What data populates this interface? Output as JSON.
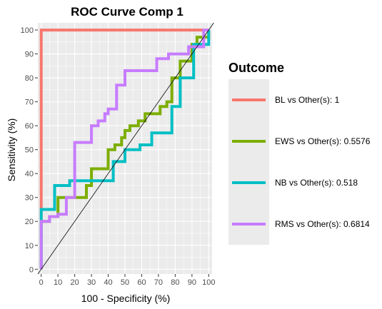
{
  "chart_data": {
    "type": "line",
    "title": "ROC Curve Comp 1",
    "xlabel": "100 - Specificity (%)",
    "ylabel": "Sensitivity (%)",
    "xlim": [
      -2,
      102
    ],
    "ylim": [
      -2,
      103
    ],
    "xticks": [
      "0",
      "10",
      "20",
      "30",
      "40",
      "50",
      "60",
      "70",
      "80",
      "90",
      "100"
    ],
    "yticks": [
      "0",
      "10",
      "20",
      "30",
      "40",
      "50",
      "60",
      "70",
      "80",
      "90",
      "100"
    ],
    "grid": true,
    "diagonal_reference": true,
    "legend": {
      "title": "Outcome",
      "position": "right"
    },
    "series": [
      {
        "name": "BL vs Other(s): 1",
        "color": "#F8766D",
        "points": [
          [
            0,
            0
          ],
          [
            0,
            100
          ],
          [
            100,
            100
          ]
        ]
      },
      {
        "name": "EWS vs Other(s): 0.5576",
        "color": "#7CAE00",
        "points": [
          [
            0,
            0
          ],
          [
            0,
            20
          ],
          [
            5,
            20
          ],
          [
            5,
            22
          ],
          [
            10,
            22
          ],
          [
            10,
            30
          ],
          [
            27,
            30
          ],
          [
            27,
            35
          ],
          [
            30,
            35
          ],
          [
            30,
            42
          ],
          [
            40,
            42
          ],
          [
            40,
            50
          ],
          [
            44,
            50
          ],
          [
            44,
            52
          ],
          [
            48,
            52
          ],
          [
            48,
            55
          ],
          [
            50,
            55
          ],
          [
            50,
            58
          ],
          [
            53,
            58
          ],
          [
            53,
            60
          ],
          [
            58,
            60
          ],
          [
            58,
            62
          ],
          [
            62,
            62
          ],
          [
            62,
            65
          ],
          [
            71,
            65
          ],
          [
            71,
            68
          ],
          [
            75,
            68
          ],
          [
            75,
            70
          ],
          [
            78,
            70
          ],
          [
            78,
            80
          ],
          [
            83,
            80
          ],
          [
            83,
            87
          ],
          [
            90,
            87
          ],
          [
            90,
            94
          ],
          [
            93,
            94
          ],
          [
            93,
            97
          ],
          [
            100,
            97
          ],
          [
            100,
            100
          ]
        ]
      },
      {
        "name": "NB vs Other(s): 0.518",
        "color": "#00BFC4",
        "points": [
          [
            0,
            0
          ],
          [
            0,
            25
          ],
          [
            8,
            25
          ],
          [
            8,
            35
          ],
          [
            17,
            35
          ],
          [
            17,
            37
          ],
          [
            43,
            37
          ],
          [
            43,
            45
          ],
          [
            50,
            45
          ],
          [
            50,
            50
          ],
          [
            59,
            50
          ],
          [
            59,
            52
          ],
          [
            66,
            52
          ],
          [
            66,
            57
          ],
          [
            78,
            57
          ],
          [
            78,
            68
          ],
          [
            83,
            68
          ],
          [
            83,
            80
          ],
          [
            91,
            80
          ],
          [
            91,
            94
          ],
          [
            100,
            94
          ],
          [
            100,
            100
          ]
        ]
      },
      {
        "name": "RMS vs Other(s): 0.6814",
        "color": "#C77CFF",
        "points": [
          [
            0,
            0
          ],
          [
            0,
            20
          ],
          [
            5,
            20
          ],
          [
            5,
            22
          ],
          [
            10,
            22
          ],
          [
            10,
            23
          ],
          [
            15,
            23
          ],
          [
            15,
            30
          ],
          [
            20,
            30
          ],
          [
            20,
            53
          ],
          [
            30,
            53
          ],
          [
            30,
            60
          ],
          [
            34,
            60
          ],
          [
            34,
            62
          ],
          [
            38,
            62
          ],
          [
            38,
            65
          ],
          [
            40,
            65
          ],
          [
            40,
            67
          ],
          [
            45,
            67
          ],
          [
            45,
            77
          ],
          [
            50,
            77
          ],
          [
            50,
            83
          ],
          [
            69,
            83
          ],
          [
            69,
            88
          ],
          [
            76,
            88
          ],
          [
            76,
            90
          ],
          [
            88,
            90
          ],
          [
            88,
            93
          ],
          [
            97,
            93
          ],
          [
            97,
            100
          ],
          [
            100,
            100
          ]
        ]
      }
    ]
  }
}
